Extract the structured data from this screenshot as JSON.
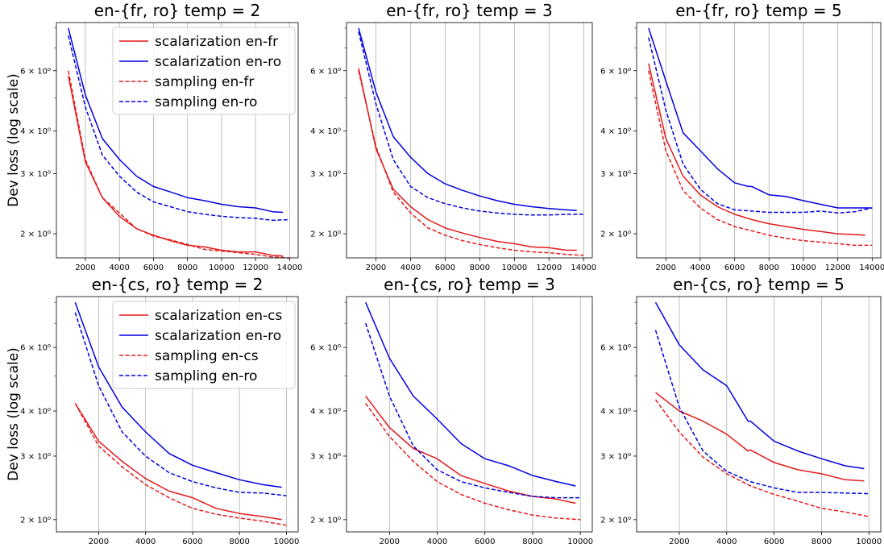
{
  "chart_data": [
    {
      "type": "line",
      "title": "en-{fr, ro} temp = 2",
      "ylabel": "Dev loss (log scale)",
      "yscale": "log",
      "xlim": [
        300,
        14500
      ],
      "ylim": [
        1.7,
        8.3
      ],
      "xticks": [
        2000,
        4000,
        6000,
        8000,
        10000,
        12000,
        14000
      ],
      "yticks": [
        2,
        3,
        4,
        6
      ],
      "ytick_labels": [
        "2 × 10⁰",
        "3 × 10⁰",
        "4 × 10⁰",
        "6 × 10⁰"
      ],
      "grid": "x",
      "legend": {
        "placement": "top-right",
        "entries": [
          "scalarization en-fr",
          "scalarization en-ro",
          "sampling en-fr",
          "sampling en-ro"
        ]
      },
      "series": [
        {
          "name": "scalarization en-fr",
          "color": "#e41a1c",
          "style": "solid",
          "x": [
            1000,
            2000,
            3000,
            4000,
            5000,
            6000,
            7000,
            8000,
            9000,
            10000,
            11000,
            12000,
            13000,
            13600
          ],
          "y": [
            5.8,
            3.25,
            2.55,
            2.25,
            2.07,
            1.98,
            1.91,
            1.85,
            1.83,
            1.79,
            1.77,
            1.77,
            1.73,
            1.72
          ]
        },
        {
          "name": "scalarization en-ro",
          "color": "#0000e0",
          "style": "solid",
          "x": [
            1000,
            2000,
            3000,
            4000,
            5000,
            6000,
            7000,
            8000,
            9000,
            10000,
            11000,
            12000,
            13000,
            13600
          ],
          "y": [
            8.0,
            5.1,
            3.8,
            3.3,
            2.95,
            2.75,
            2.65,
            2.55,
            2.5,
            2.44,
            2.4,
            2.38,
            2.32,
            2.31
          ]
        },
        {
          "name": "sampling en-fr",
          "color": "#e41a1c",
          "style": "dashed",
          "x": [
            1000,
            2000,
            3000,
            4000,
            5000,
            6000,
            7000,
            8000,
            9000,
            10000,
            11000,
            12000,
            13000,
            14000
          ],
          "y": [
            6.0,
            3.3,
            2.55,
            2.3,
            2.07,
            1.97,
            1.92,
            1.86,
            1.8,
            1.78,
            1.76,
            1.74,
            1.71,
            1.7
          ]
        },
        {
          "name": "sampling en-ro",
          "color": "#0000e0",
          "style": "dashed",
          "x": [
            1000,
            2000,
            3000,
            4000,
            5000,
            6000,
            7000,
            8000,
            9000,
            10000,
            11000,
            12000,
            13000,
            14000
          ],
          "y": [
            7.6,
            4.7,
            3.4,
            2.95,
            2.65,
            2.48,
            2.4,
            2.32,
            2.28,
            2.25,
            2.23,
            2.22,
            2.19,
            2.2
          ]
        }
      ]
    },
    {
      "type": "line",
      "title": "en-{fr, ro} temp = 3",
      "yscale": "log",
      "xlim": [
        300,
        14500
      ],
      "ylim": [
        1.7,
        8.3
      ],
      "xticks": [
        2000,
        4000,
        6000,
        8000,
        10000,
        12000,
        14000
      ],
      "yticks": [
        2,
        3,
        4,
        6
      ],
      "ytick_labels": [
        "2 × 10⁰",
        "3 × 10⁰",
        "4 × 10⁰",
        "6 × 10⁰"
      ],
      "grid": "x",
      "series": [
        {
          "name": "scalarization en-fr",
          "color": "#e41a1c",
          "style": "solid",
          "x": [
            1000,
            2000,
            3000,
            4000,
            5000,
            6000,
            7000,
            8000,
            9000,
            10000,
            11000,
            12000,
            13000,
            13600
          ],
          "y": [
            6.1,
            3.55,
            2.7,
            2.4,
            2.2,
            2.08,
            2.01,
            1.95,
            1.9,
            1.87,
            1.83,
            1.82,
            1.79,
            1.79
          ]
        },
        {
          "name": "scalarization en-ro",
          "color": "#0000e0",
          "style": "solid",
          "x": [
            1000,
            2000,
            3000,
            4000,
            5000,
            6000,
            7000,
            8000,
            9000,
            10000,
            11000,
            12000,
            13000,
            13600
          ],
          "y": [
            8.0,
            5.2,
            3.85,
            3.35,
            3.0,
            2.8,
            2.68,
            2.58,
            2.5,
            2.44,
            2.4,
            2.37,
            2.35,
            2.34
          ]
        },
        {
          "name": "sampling en-fr",
          "color": "#e41a1c",
          "style": "dashed",
          "x": [
            1000,
            2000,
            3000,
            4000,
            5000,
            6000,
            7000,
            8000,
            9000,
            10000,
            11000,
            12000,
            13000,
            14000
          ],
          "y": [
            6.0,
            3.6,
            2.65,
            2.3,
            2.08,
            1.98,
            1.91,
            1.86,
            1.82,
            1.79,
            1.77,
            1.76,
            1.74,
            1.73
          ]
        },
        {
          "name": "sampling en-ro",
          "color": "#0000e0",
          "style": "dashed",
          "x": [
            1000,
            2000,
            3000,
            4000,
            5000,
            6000,
            7000,
            8000,
            9000,
            10000,
            11000,
            12000,
            13000,
            14000
          ],
          "y": [
            7.8,
            4.8,
            3.3,
            2.75,
            2.55,
            2.45,
            2.38,
            2.33,
            2.3,
            2.28,
            2.27,
            2.27,
            2.28,
            2.28
          ]
        }
      ]
    },
    {
      "type": "line",
      "title": "en-{fr, ro} temp = 5",
      "yscale": "log",
      "xlim": [
        300,
        14500
      ],
      "ylim": [
        1.7,
        8.3
      ],
      "xticks": [
        2000,
        4000,
        6000,
        8000,
        10000,
        12000,
        14000
      ],
      "yticks": [
        2,
        3,
        4,
        6
      ],
      "ytick_labels": [
        "2 × 10⁰",
        "3 × 10⁰",
        "4 × 10⁰",
        "6 × 10⁰"
      ],
      "grid": "x",
      "series": [
        {
          "name": "scalarization en-fr",
          "color": "#e41a1c",
          "style": "solid",
          "x": [
            1000,
            2000,
            3000,
            4000,
            5000,
            6000,
            7000,
            8000,
            9000,
            10000,
            11000,
            12000,
            13000,
            13600
          ],
          "y": [
            6.3,
            3.8,
            2.95,
            2.6,
            2.4,
            2.28,
            2.2,
            2.14,
            2.1,
            2.06,
            2.03,
            2.0,
            1.99,
            1.98
          ]
        },
        {
          "name": "scalarization en-ro",
          "color": "#0000e0",
          "style": "solid",
          "x": [
            1000,
            2000,
            3000,
            4000,
            5000,
            6000,
            6800,
            7000,
            8000,
            9000,
            10000,
            11000,
            12000,
            13000,
            14000
          ],
          "y": [
            8.0,
            5.6,
            3.95,
            3.5,
            3.1,
            2.82,
            2.75,
            2.75,
            2.6,
            2.57,
            2.5,
            2.44,
            2.38,
            2.38,
            2.38
          ]
        },
        {
          "name": "sampling en-fr",
          "color": "#e41a1c",
          "style": "dashed",
          "x": [
            1000,
            2000,
            3000,
            4000,
            5000,
            6000,
            7000,
            8000,
            9000,
            10000,
            11000,
            12000,
            13000,
            14000
          ],
          "y": [
            6.0,
            3.5,
            2.68,
            2.38,
            2.2,
            2.1,
            2.04,
            1.98,
            1.94,
            1.91,
            1.89,
            1.87,
            1.85,
            1.85
          ]
        },
        {
          "name": "sampling en-ro",
          "color": "#0000e0",
          "style": "dashed",
          "x": [
            1000,
            2000,
            3000,
            4000,
            5000,
            6000,
            7000,
            8000,
            9000,
            10000,
            11000,
            12000,
            13000,
            14000
          ],
          "y": [
            7.5,
            4.6,
            3.2,
            2.7,
            2.45,
            2.35,
            2.33,
            2.31,
            2.31,
            2.31,
            2.33,
            2.3,
            2.32,
            2.38
          ]
        }
      ]
    },
    {
      "type": "line",
      "title": "en-{cs, ro} temp = 2",
      "ylabel": "Dev loss (log scale)",
      "yscale": "log",
      "xlim": [
        200,
        10500
      ],
      "ylim": [
        1.85,
        8.3
      ],
      "xticks": [
        2000,
        4000,
        6000,
        8000,
        10000
      ],
      "yticks": [
        2,
        3,
        4,
        6
      ],
      "ytick_labels": [
        "2 × 10⁰",
        "3 × 10⁰",
        "4 × 10⁰",
        "6 × 10⁰"
      ],
      "grid": "x",
      "legend": {
        "placement": "top-right",
        "entries": [
          "scalarization en-cs",
          "scalarization en-ro",
          "sampling en-cs",
          "sampling en-ro"
        ]
      },
      "series": [
        {
          "name": "scalarization en-cs",
          "color": "#e41a1c",
          "style": "solid",
          "x": [
            1000,
            2000,
            3000,
            4000,
            5000,
            6000,
            7000,
            8000,
            9000,
            9800
          ],
          "y": [
            4.2,
            3.3,
            2.9,
            2.6,
            2.4,
            2.3,
            2.15,
            2.08,
            2.04,
            2.0
          ]
        },
        {
          "name": "scalarization en-ro",
          "color": "#0000e0",
          "style": "solid",
          "x": [
            1000,
            2000,
            3000,
            4000,
            5000,
            6000,
            7000,
            8000,
            9000,
            9800
          ],
          "y": [
            8.0,
            5.3,
            4.1,
            3.5,
            3.05,
            2.83,
            2.7,
            2.58,
            2.5,
            2.46
          ]
        },
        {
          "name": "sampling en-cs",
          "color": "#e41a1c",
          "style": "dashed",
          "x": [
            1000,
            2000,
            3000,
            4000,
            5000,
            6000,
            7000,
            8000,
            9000,
            10000
          ],
          "y": [
            4.2,
            3.2,
            2.8,
            2.5,
            2.3,
            2.15,
            2.07,
            2.02,
            1.98,
            1.93
          ]
        },
        {
          "name": "sampling en-ro",
          "color": "#0000e0",
          "style": "dashed",
          "x": [
            1000,
            2000,
            3000,
            4000,
            5000,
            6000,
            7000,
            8000,
            9000,
            10000
          ],
          "y": [
            7.5,
            4.7,
            3.5,
            3.0,
            2.7,
            2.55,
            2.45,
            2.38,
            2.37,
            2.33
          ]
        }
      ]
    },
    {
      "type": "line",
      "title": "en-{cs, ro} temp = 3",
      "yscale": "log",
      "xlim": [
        200,
        10500
      ],
      "ylim": [
        1.85,
        8.3
      ],
      "xticks": [
        2000,
        4000,
        6000,
        8000,
        10000
      ],
      "yticks": [
        2,
        3,
        4,
        6
      ],
      "ytick_labels": [
        "2 × 10⁰",
        "3 × 10⁰",
        "4 × 10⁰",
        "6 × 10⁰"
      ],
      "grid": "x",
      "series": [
        {
          "name": "scalarization en-cs",
          "color": "#e41a1c",
          "style": "solid",
          "x": [
            1000,
            2000,
            3000,
            4000,
            5000,
            6000,
            7000,
            8000,
            9000,
            9800
          ],
          "y": [
            4.4,
            3.6,
            3.15,
            2.95,
            2.65,
            2.52,
            2.4,
            2.32,
            2.28,
            2.22
          ]
        },
        {
          "name": "scalarization en-ro",
          "color": "#0000e0",
          "style": "solid",
          "x": [
            1000,
            2000,
            3000,
            4000,
            5000,
            6000,
            7000,
            8000,
            9000,
            9800
          ],
          "y": [
            8.0,
            5.6,
            4.4,
            3.8,
            3.25,
            2.95,
            2.82,
            2.65,
            2.55,
            2.48
          ]
        },
        {
          "name": "sampling en-cs",
          "color": "#e41a1c",
          "style": "dashed",
          "x": [
            1000,
            2000,
            3000,
            4000,
            5000,
            6000,
            7000,
            8000,
            9000,
            10000
          ],
          "y": [
            4.2,
            3.4,
            2.9,
            2.55,
            2.35,
            2.22,
            2.13,
            2.06,
            2.02,
            2.0
          ]
        },
        {
          "name": "sampling en-ro",
          "color": "#0000e0",
          "style": "dashed",
          "x": [
            1000,
            2000,
            3000,
            4000,
            5000,
            6000,
            7000,
            8000,
            9000,
            10000
          ],
          "y": [
            7.0,
            4.4,
            3.2,
            2.75,
            2.55,
            2.45,
            2.38,
            2.32,
            2.3,
            2.3
          ]
        }
      ]
    },
    {
      "type": "line",
      "title": "en-{cs, ro} temp = 5",
      "yscale": "log",
      "xlim": [
        200,
        10500
      ],
      "ylim": [
        1.85,
        8.3
      ],
      "xticks": [
        2000,
        4000,
        6000,
        8000,
        10000
      ],
      "yticks": [
        2,
        3,
        4,
        6
      ],
      "ytick_labels": [
        "2 × 10⁰",
        "3 × 10⁰",
        "4 × 10⁰",
        "6 × 10⁰"
      ],
      "grid": "x",
      "series": [
        {
          "name": "scalarization en-cs",
          "color": "#e41a1c",
          "style": "solid",
          "x": [
            1000,
            2000,
            3000,
            4000,
            4900,
            5000,
            6000,
            7000,
            8000,
            9000,
            9800
          ],
          "y": [
            4.5,
            4.0,
            3.75,
            3.45,
            3.1,
            3.12,
            2.88,
            2.75,
            2.68,
            2.58,
            2.56
          ]
        },
        {
          "name": "scalarization en-ro",
          "color": "#0000e0",
          "style": "solid",
          "x": [
            1000,
            2000,
            3000,
            4000,
            4900,
            5000,
            6000,
            7000,
            8000,
            9000,
            9800
          ],
          "y": [
            8.0,
            6.1,
            5.2,
            4.7,
            3.75,
            3.75,
            3.3,
            3.1,
            2.95,
            2.82,
            2.77
          ]
        },
        {
          "name": "sampling en-cs",
          "color": "#e41a1c",
          "style": "dashed",
          "x": [
            1000,
            2000,
            3000,
            4000,
            5000,
            6000,
            7000,
            8000,
            9000,
            10000
          ],
          "y": [
            4.3,
            3.5,
            2.98,
            2.68,
            2.48,
            2.35,
            2.25,
            2.15,
            2.1,
            2.04
          ]
        },
        {
          "name": "sampling en-ro",
          "color": "#0000e0",
          "style": "dashed",
          "x": [
            1000,
            2000,
            3000,
            4000,
            5000,
            6000,
            7000,
            8000,
            9000,
            10000
          ],
          "y": [
            6.7,
            4.1,
            3.1,
            2.72,
            2.55,
            2.45,
            2.38,
            2.38,
            2.37,
            2.36
          ]
        }
      ]
    }
  ]
}
